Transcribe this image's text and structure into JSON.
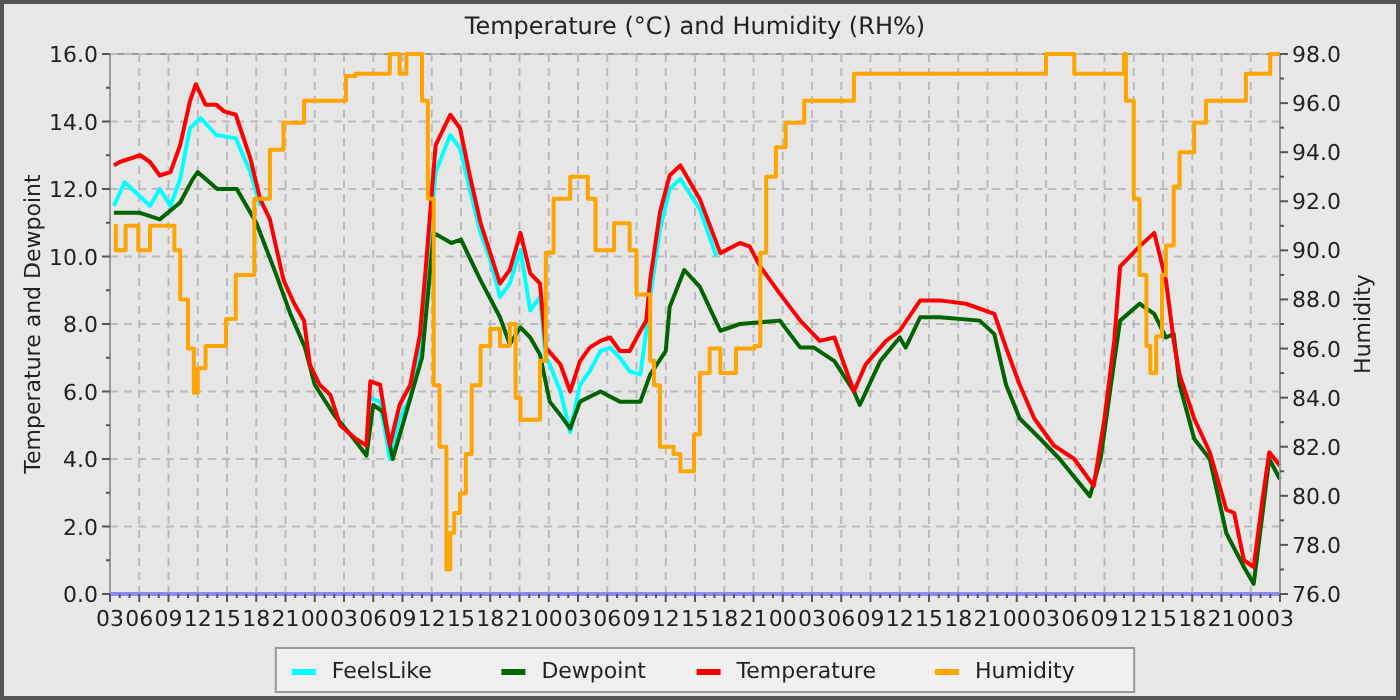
{
  "chart_data": {
    "type": "line",
    "title": "Temperature (°C) and Humidity (RH%)",
    "ylabel": "Temperature and Dewpoint",
    "y2label": "Humidity",
    "xlim": [
      3,
      123
    ],
    "xticks": [
      {
        "value": 3,
        "label": "03"
      },
      {
        "value": 4,
        "label": null
      },
      {
        "value": 5,
        "label": null
      },
      {
        "value": 6,
        "label": "06"
      },
      {
        "value": 7,
        "label": null
      },
      {
        "value": 8,
        "label": null
      },
      {
        "value": 9,
        "label": "09"
      },
      {
        "value": 10,
        "label": null
      },
      {
        "value": 11,
        "label": null
      },
      {
        "value": 12,
        "label": "12"
      },
      {
        "value": 13,
        "label": null
      },
      {
        "value": 14,
        "label": null
      },
      {
        "value": 15,
        "label": "15"
      },
      {
        "value": 16,
        "label": null
      },
      {
        "value": 17,
        "label": null
      },
      {
        "value": 18,
        "label": "18"
      },
      {
        "value": 19,
        "label": null
      },
      {
        "value": 20,
        "label": null
      },
      {
        "value": 21,
        "label": "21"
      },
      {
        "value": 22,
        "label": null
      },
      {
        "value": 23,
        "label": null
      },
      {
        "value": 24,
        "label": "00"
      },
      {
        "value": 25,
        "label": null
      },
      {
        "value": 26,
        "label": null
      },
      {
        "value": 27,
        "label": "03"
      },
      {
        "value": 28,
        "label": null
      },
      {
        "value": 29,
        "label": null
      },
      {
        "value": 30,
        "label": "06"
      },
      {
        "value": 31,
        "label": null
      },
      {
        "value": 32,
        "label": null
      },
      {
        "value": 33,
        "label": "09"
      },
      {
        "value": 34,
        "label": null
      },
      {
        "value": 35,
        "label": null
      },
      {
        "value": 36,
        "label": "12"
      },
      {
        "value": 37,
        "label": null
      },
      {
        "value": 38,
        "label": null
      },
      {
        "value": 39,
        "label": "15"
      },
      {
        "value": 40,
        "label": null
      },
      {
        "value": 41,
        "label": null
      },
      {
        "value": 42,
        "label": "18"
      },
      {
        "value": 43,
        "label": null
      },
      {
        "value": 44,
        "label": null
      },
      {
        "value": 45,
        "label": "21"
      },
      {
        "value": 46,
        "label": null
      },
      {
        "value": 47,
        "label": null
      },
      {
        "value": 48,
        "label": "00"
      },
      {
        "value": 49,
        "label": null
      },
      {
        "value": 50,
        "label": null
      },
      {
        "value": 51,
        "label": "03"
      },
      {
        "value": 52,
        "label": null
      },
      {
        "value": 53,
        "label": null
      },
      {
        "value": 54,
        "label": "06"
      },
      {
        "value": 55,
        "label": null
      },
      {
        "value": 56,
        "label": null
      },
      {
        "value": 57,
        "label": "09"
      },
      {
        "value": 58,
        "label": null
      },
      {
        "value": 59,
        "label": null
      },
      {
        "value": 60,
        "label": "12"
      },
      {
        "value": 61,
        "label": null
      },
      {
        "value": 62,
        "label": null
      },
      {
        "value": 63,
        "label": "15"
      },
      {
        "value": 64,
        "label": null
      },
      {
        "value": 65,
        "label": null
      },
      {
        "value": 66,
        "label": "18"
      },
      {
        "value": 67,
        "label": null
      },
      {
        "value": 68,
        "label": null
      },
      {
        "value": 69,
        "label": "21"
      },
      {
        "value": 70,
        "label": null
      },
      {
        "value": 71,
        "label": null
      },
      {
        "value": 72,
        "label": "00"
      },
      {
        "value": 73,
        "label": null
      },
      {
        "value": 74,
        "label": null
      },
      {
        "value": 75,
        "label": "03"
      },
      {
        "value": 76,
        "label": null
      },
      {
        "value": 77,
        "label": null
      },
      {
        "value": 78,
        "label": "06"
      },
      {
        "value": 79,
        "label": null
      },
      {
        "value": 80,
        "label": null
      },
      {
        "value": 81,
        "label": "09"
      },
      {
        "value": 82,
        "label": null
      },
      {
        "value": 83,
        "label": null
      },
      {
        "value": 84,
        "label": "12"
      },
      {
        "value": 85,
        "label": null
      },
      {
        "value": 86,
        "label": null
      },
      {
        "value": 87,
        "label": "15"
      },
      {
        "value": 88,
        "label": null
      },
      {
        "value": 89,
        "label": null
      },
      {
        "value": 90,
        "label": "18"
      },
      {
        "value": 91,
        "label": null
      },
      {
        "value": 92,
        "label": null
      },
      {
        "value": 93,
        "label": "21"
      },
      {
        "value": 94,
        "label": null
      },
      {
        "value": 95,
        "label": null
      },
      {
        "value": 96,
        "label": "00"
      },
      {
        "value": 97,
        "label": null
      },
      {
        "value": 98,
        "label": null
      },
      {
        "value": 99,
        "label": "03"
      },
      {
        "value": 100,
        "label": null
      },
      {
        "value": 101,
        "label": null
      },
      {
        "value": 102,
        "label": "06"
      },
      {
        "value": 103,
        "label": null
      },
      {
        "value": 104,
        "label": null
      },
      {
        "value": 105,
        "label": "09"
      },
      {
        "value": 106,
        "label": null
      },
      {
        "value": 107,
        "label": null
      },
      {
        "value": 108,
        "label": "12"
      },
      {
        "value": 109,
        "label": null
      },
      {
        "value": 110,
        "label": null
      },
      {
        "value": 111,
        "label": "15"
      },
      {
        "value": 112,
        "label": null
      },
      {
        "value": 113,
        "label": null
      },
      {
        "value": 114,
        "label": "18"
      },
      {
        "value": 115,
        "label": null
      },
      {
        "value": 116,
        "label": null
      },
      {
        "value": 117,
        "label": "21"
      },
      {
        "value": 118,
        "label": null
      },
      {
        "value": 119,
        "label": null
      },
      {
        "value": 120,
        "label": "00"
      },
      {
        "value": 121,
        "label": null
      },
      {
        "value": 122,
        "label": null
      },
      {
        "value": 123,
        "label": "03"
      }
    ],
    "ylim": [
      0,
      16
    ],
    "yticks": [
      {
        "value": 0,
        "label": "0.0"
      },
      {
        "value": 1,
        "label": null
      },
      {
        "value": 2,
        "label": "2.0"
      },
      {
        "value": 3,
        "label": null
      },
      {
        "value": 4,
        "label": "4.0"
      },
      {
        "value": 5,
        "label": null
      },
      {
        "value": 6,
        "label": "6.0"
      },
      {
        "value": 7,
        "label": null
      },
      {
        "value": 8,
        "label": "8.0"
      },
      {
        "value": 9,
        "label": null
      },
      {
        "value": 10,
        "label": "10.0"
      },
      {
        "value": 11,
        "label": null
      },
      {
        "value": 12,
        "label": "12.0"
      },
      {
        "value": 13,
        "label": null
      },
      {
        "value": 14,
        "label": "14.0"
      },
      {
        "value": 15,
        "label": null
      },
      {
        "value": 16,
        "label": "16.0"
      }
    ],
    "y2lim": [
      76,
      98
    ],
    "y2ticks": [
      {
        "value": 76,
        "label": "76.0"
      },
      {
        "value": 77,
        "label": null
      },
      {
        "value": 78,
        "label": "78.0"
      },
      {
        "value": 79,
        "label": null
      },
      {
        "value": 80,
        "label": "80.0"
      },
      {
        "value": 81,
        "label": null
      },
      {
        "value": 82,
        "label": "82.0"
      },
      {
        "value": 83,
        "label": null
      },
      {
        "value": 84,
        "label": "84.0"
      },
      {
        "value": 85,
        "label": null
      },
      {
        "value": 86,
        "label": "86.0"
      },
      {
        "value": 87,
        "label": null
      },
      {
        "value": 88,
        "label": "88.0"
      },
      {
        "value": 89,
        "label": null
      },
      {
        "value": 90,
        "label": "90.0"
      },
      {
        "value": 91,
        "label": null
      },
      {
        "value": 92,
        "label": "92.0"
      },
      {
        "value": 93,
        "label": null
      },
      {
        "value": 94,
        "label": "94.0"
      },
      {
        "value": 95,
        "label": null
      },
      {
        "value": 96,
        "label": "96.0"
      },
      {
        "value": 97,
        "label": null
      },
      {
        "value": 98,
        "label": "98.0"
      }
    ],
    "grid": true,
    "legend": "bottom",
    "line_style": "solid",
    "marker": "none",
    "series": [
      {
        "name": "FeelsLike",
        "color": "#00ffff",
        "x": [
          3.4,
          4.5,
          6,
          7.1,
          8.1,
          9.2,
          10.2,
          11.2,
          12.3,
          13.9,
          15.9,
          17.4,
          18.4,
          19.4,
          29.7,
          30.7,
          31.7,
          32.7,
          33.8,
          34.8,
          35.4,
          36.4,
          37.9,
          38.9,
          39.9,
          41.0,
          42.0,
          43.0,
          44.0,
          45.1,
          46.1,
          47.1,
          47.7,
          48.1,
          49.2,
          50.2,
          51.2,
          52.2,
          53.3,
          54.3,
          55.3,
          56.3,
          57.4,
          58.0,
          58.4,
          59.4,
          60.4,
          61.5,
          63.5,
          65.2
        ],
        "values": [
          11.5,
          12.2,
          11.8,
          11.5,
          12.0,
          11.5,
          12.3,
          13.8,
          14.1,
          13.6,
          13.5,
          12.5,
          11.5,
          null,
          5.8,
          5.7,
          4.0,
          5.2,
          5.8,
          7.3,
          9.3,
          12.5,
          13.6,
          13.2,
          12.0,
          10.7,
          9.9,
          8.8,
          9.2,
          10.2,
          8.4,
          8.8,
          7.0,
          6.8,
          6.0,
          4.8,
          6.2,
          6.6,
          7.2,
          7.3,
          7.0,
          6.6,
          6.5,
          7.8,
          8.8,
          10.8,
          12.0,
          12.3,
          11.4,
          10.0
        ]
      },
      {
        "name": "Dewpoint",
        "color": "#006400",
        "x": [
          3.4,
          6,
          8.1,
          10.2,
          11.5,
          12,
          14,
          16,
          18,
          20,
          21.5,
          23,
          24,
          26,
          28,
          29.3,
          30,
          31,
          32,
          33.5,
          35,
          36.2,
          38,
          39,
          41,
          43,
          44,
          45.1,
          46.1,
          47.1,
          48.1,
          49.2,
          50.2,
          51.2,
          53.3,
          55.3,
          57.4,
          58.4,
          60,
          60.4,
          61.9,
          63.5,
          65.6,
          67.6,
          71.7,
          73.8,
          75.2,
          77.3,
          79.3,
          79.9,
          82.0,
          84.0,
          84.6,
          86.1,
          88.1,
          92.2,
          93.7,
          94.9,
          96.3,
          98.4,
          100.4,
          103.5,
          104.6,
          106.0,
          106.6,
          108.6,
          110.1,
          111.3,
          112.1,
          112.7,
          114.2,
          115.8,
          117.5,
          119.3,
          120.3,
          121.3,
          121.9,
          123
        ],
        "values": [
          11.3,
          11.3,
          11.1,
          11.6,
          12.3,
          12.5,
          12.0,
          12.0,
          11.0,
          9.5,
          8.3,
          7.3,
          6.2,
          5.3,
          4.6,
          4.1,
          5.6,
          5.4,
          4.0,
          5.5,
          7.0,
          10.7,
          10.4,
          10.5,
          9.3,
          8.2,
          7.4,
          7.9,
          7.6,
          7.1,
          5.7,
          5.3,
          4.9,
          5.7,
          6.0,
          5.7,
          5.7,
          6.5,
          7.2,
          8.5,
          9.6,
          9.1,
          7.8,
          8.0,
          8.1,
          7.3,
          7.3,
          6.9,
          6.0,
          5.6,
          6.9,
          7.6,
          7.3,
          8.2,
          8.2,
          8.1,
          7.7,
          6.2,
          5.2,
          4.6,
          4.0,
          2.9,
          4.0,
          6.9,
          8.1,
          8.6,
          8.3,
          7.6,
          7.7,
          6.2,
          4.6,
          4.0,
          1.8,
          0.8,
          0.3,
          2.6,
          4.0,
          3.4
        ]
      },
      {
        "name": "Temperature",
        "color": "#ff0000",
        "x": [
          3.4,
          4.0,
          6.1,
          7.1,
          8.1,
          9.2,
          10.2,
          11.2,
          11.8,
          12.8,
          13.9,
          14.7,
          15.9,
          17.4,
          18.4,
          19.4,
          20.8,
          21.9,
          22.9,
          23.5,
          24.5,
          25.6,
          26.6,
          28.2,
          29.3,
          29.7,
          30.7,
          31.7,
          32.7,
          33.8,
          34.8,
          35.4,
          36.4,
          37.9,
          38.9,
          39.9,
          41.0,
          42.0,
          43.0,
          44.0,
          45.1,
          46.1,
          47.1,
          47.7,
          49.2,
          50.2,
          51.2,
          52.2,
          53.3,
          54.3,
          55.3,
          56.3,
          57.4,
          58.0,
          58.4,
          59.4,
          60.4,
          61.5,
          63.5,
          65.6,
          67.6,
          68.6,
          69.7,
          71.7,
          73.8,
          75.8,
          77.3,
          79.3,
          80.5,
          82.6,
          84.0,
          86.1,
          88.1,
          90.8,
          93.7,
          94.9,
          96.3,
          97.8,
          99.8,
          101.9,
          103.9,
          105.0,
          106.0,
          106.6,
          108.6,
          110.1,
          111.3,
          112.1,
          112.7,
          114.2,
          115.8,
          117.5,
          118.3,
          119.3,
          120.3,
          121.3,
          121.9,
          123
        ],
        "values": [
          12.7,
          12.8,
          13.0,
          12.8,
          12.4,
          12.5,
          13.3,
          14.6,
          15.1,
          14.5,
          14.5,
          14.3,
          14.2,
          12.9,
          11.7,
          11.1,
          9.3,
          8.6,
          8.1,
          6.8,
          6.2,
          5.9,
          5.0,
          4.6,
          4.4,
          6.3,
          6.2,
          4.4,
          5.6,
          6.2,
          7.7,
          9.7,
          13.3,
          14.2,
          13.8,
          12.4,
          11.0,
          10.1,
          9.2,
          9.6,
          10.7,
          9.5,
          9.2,
          7.3,
          6.8,
          6.0,
          6.9,
          7.3,
          7.5,
          7.6,
          7.2,
          7.2,
          7.8,
          8.1,
          9.3,
          11.3,
          12.4,
          12.7,
          11.7,
          10.1,
          10.4,
          10.3,
          9.7,
          8.9,
          8.1,
          7.5,
          7.6,
          6.0,
          6.8,
          7.5,
          7.8,
          8.7,
          8.7,
          8.6,
          8.3,
          7.3,
          6.2,
          5.2,
          4.4,
          4.0,
          3.2,
          5.2,
          7.5,
          9.7,
          10.3,
          10.7,
          9.3,
          7.5,
          6.5,
          5.2,
          4.2,
          2.5,
          2.4,
          1.0,
          0.8,
          3.0,
          4.2,
          3.8
        ]
      },
      {
        "name": "Humidity",
        "color": "#ffa500",
        "type": "step",
        "axis": "y2",
        "x": [
          3.4,
          3.6,
          4.6,
          5.9,
          7.1,
          9.6,
          10.2,
          11.0,
          11.6,
          12.0,
          12.8,
          14.9,
          15.9,
          17.8,
          19.4,
          20.8,
          22.9,
          27.2,
          28.2,
          31.7,
          32.7,
          33.4,
          35.0,
          35.6,
          36.2,
          36.8,
          37.5,
          37.9,
          38.3,
          38.9,
          39.5,
          40.1,
          41.0,
          42.0,
          43.0,
          44.0,
          44.6,
          45.1,
          46.3,
          47.1,
          47.7,
          48.5,
          50.2,
          52.0,
          52.8,
          54.7,
          56.3,
          57.0,
          58.4,
          58.8,
          59.4,
          60.8,
          61.5,
          62.5,
          62.9,
          63.5,
          64.5,
          65.6,
          67.2,
          69.1,
          69.7,
          70.3,
          71.3,
          72.3,
          74.2,
          79.3,
          99.0,
          101.9,
          107.0,
          107.2,
          108.0,
          108.6,
          109.3,
          109.7,
          110.3,
          110.9,
          111.3,
          112.1,
          112.7,
          114.2,
          115.4,
          119.5,
          122.0,
          123
        ],
        "values": [
          91,
          90,
          91,
          90,
          91,
          90,
          88,
          86,
          84.2,
          85.2,
          86.1,
          87.2,
          89,
          92.1,
          94.1,
          95.2,
          96.1,
          97.1,
          97.2,
          98,
          97.2,
          98,
          96.1,
          92.1,
          84.5,
          82.0,
          77.0,
          78.5,
          79.3,
          80.1,
          81.7,
          84.5,
          86.1,
          86.8,
          86.1,
          87.0,
          84.0,
          83.1,
          83.1,
          85.5,
          89.9,
          92.1,
          93.0,
          92.1,
          90.0,
          91.1,
          90.0,
          88.2,
          85.5,
          84.5,
          82.0,
          81.7,
          81.0,
          81.0,
          82.5,
          85.0,
          86.0,
          85.0,
          86.0,
          86.1,
          89.9,
          93.0,
          94.2,
          95.2,
          96.1,
          97.2,
          98,
          97.2,
          98,
          96.1,
          92.1,
          89,
          86.1,
          85.0,
          86.5,
          89,
          90.2,
          92.6,
          94.0,
          95.2,
          96.1,
          97.2,
          98,
          98
        ]
      }
    ]
  }
}
